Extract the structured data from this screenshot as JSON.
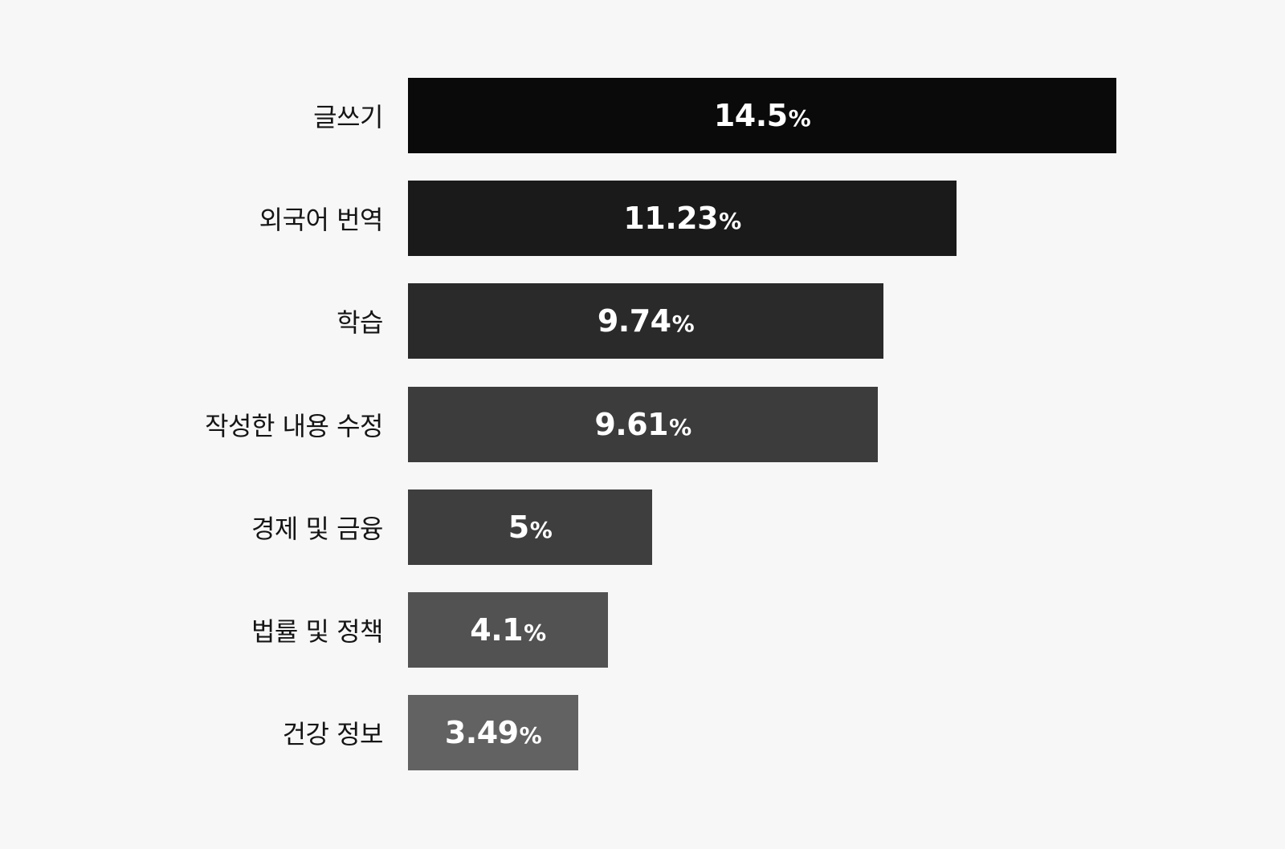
{
  "chart_data": {
    "type": "bar",
    "orientation": "horizontal",
    "title": "",
    "xlabel": "",
    "ylabel": "",
    "unit": "%",
    "xlim": [
      0,
      14.5
    ],
    "grid": false,
    "legend": "none",
    "categories": [
      "글쓰기",
      "외국어 번역",
      "학습",
      "작성한 내용 수정",
      "경제 및 금융",
      "법률 및 정책",
      "건강 정보"
    ],
    "values": [
      14.5,
      11.23,
      9.74,
      9.61,
      5,
      4.1,
      3.49
    ],
    "value_labels": [
      "14.5",
      "11.23",
      "9.74",
      "9.61",
      "5",
      "4.1",
      "3.49"
    ],
    "bar_colors": [
      "#0a0a0a",
      "#1a1a1a",
      "#2a2a2a",
      "#3c3c3c",
      "#3e3e3e",
      "#525252",
      "#626262"
    ]
  }
}
